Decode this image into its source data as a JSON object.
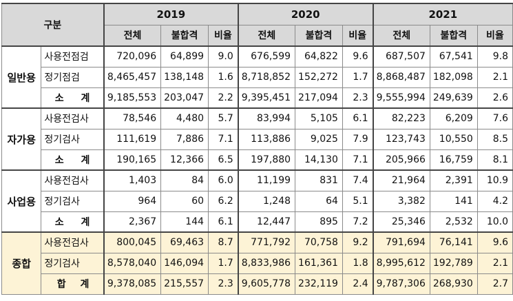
{
  "header": {
    "category_label": "구분",
    "years": [
      "2019",
      "2020",
      "2021"
    ],
    "columns": [
      "전체",
      "불합격",
      "비율"
    ]
  },
  "groups": [
    {
      "name": "일반용",
      "rows": [
        {
          "label": "사용전점검",
          "values": [
            "720,096",
            "64,899",
            "9.0",
            "676,599",
            "64,822",
            "9.6",
            "687,507",
            "67,541",
            "9.8"
          ]
        },
        {
          "label": "정기점검",
          "values": [
            "8,465,457",
            "138,148",
            "1.6",
            "8,718,852",
            "152,272",
            "1.7",
            "8,868,487",
            "182,098",
            "2.1"
          ]
        },
        {
          "label": "소 계",
          "values": [
            "9,185,553",
            "203,047",
            "2.2",
            "9,395,451",
            "217,094",
            "2.3",
            "9,555,994",
            "249,639",
            "2.6"
          ]
        }
      ]
    },
    {
      "name": "자가용",
      "rows": [
        {
          "label": "사용전검사",
          "values": [
            "78,546",
            "4,480",
            "5.7",
            "83,994",
            "5,105",
            "6.1",
            "82,223",
            "6,209",
            "7.6"
          ]
        },
        {
          "label": "정기검사",
          "values": [
            "111,619",
            "7,886",
            "7.1",
            "113,886",
            "9,025",
            "7.9",
            "123,743",
            "10,550",
            "8.5"
          ]
        },
        {
          "label": "소 계",
          "values": [
            "190,165",
            "12,366",
            "6.5",
            "197,880",
            "14,130",
            "7.1",
            "205,966",
            "16,759",
            "8.1"
          ]
        }
      ]
    },
    {
      "name": "사업용",
      "rows": [
        {
          "label": "사용전검사",
          "values": [
            "1,403",
            "84",
            "6.0",
            "11,199",
            "831",
            "7.4",
            "21,964",
            "2,391",
            "10.9"
          ]
        },
        {
          "label": "정기검사",
          "values": [
            "964",
            "60",
            "6.2",
            "1,248",
            "64",
            "5.1",
            "3,382",
            "141",
            "4.2"
          ]
        },
        {
          "label": "소 계",
          "values": [
            "2,367",
            "144",
            "6.1",
            "12,447",
            "895",
            "7.2",
            "25,346",
            "2,532",
            "10.0"
          ]
        }
      ]
    },
    {
      "name": "종합",
      "rows": [
        {
          "label": "사용전검사",
          "values": [
            "800,045",
            "69,463",
            "8.7",
            "771,792",
            "70,758",
            "9.2",
            "791,694",
            "76,141",
            "9.6"
          ]
        },
        {
          "label": "정기검사",
          "values": [
            "8,578,040",
            "146,094",
            "1.7",
            "8,833,986",
            "161,361",
            "1.8",
            "8,995,612",
            "192,789",
            "2.1"
          ]
        },
        {
          "label": "합 계",
          "values": [
            "9,378,085",
            "215,557",
            "2.3",
            "9,605,778",
            "232,119",
            "2.4",
            "9,787,306",
            "268,930",
            "2.7"
          ]
        }
      ]
    }
  ]
}
